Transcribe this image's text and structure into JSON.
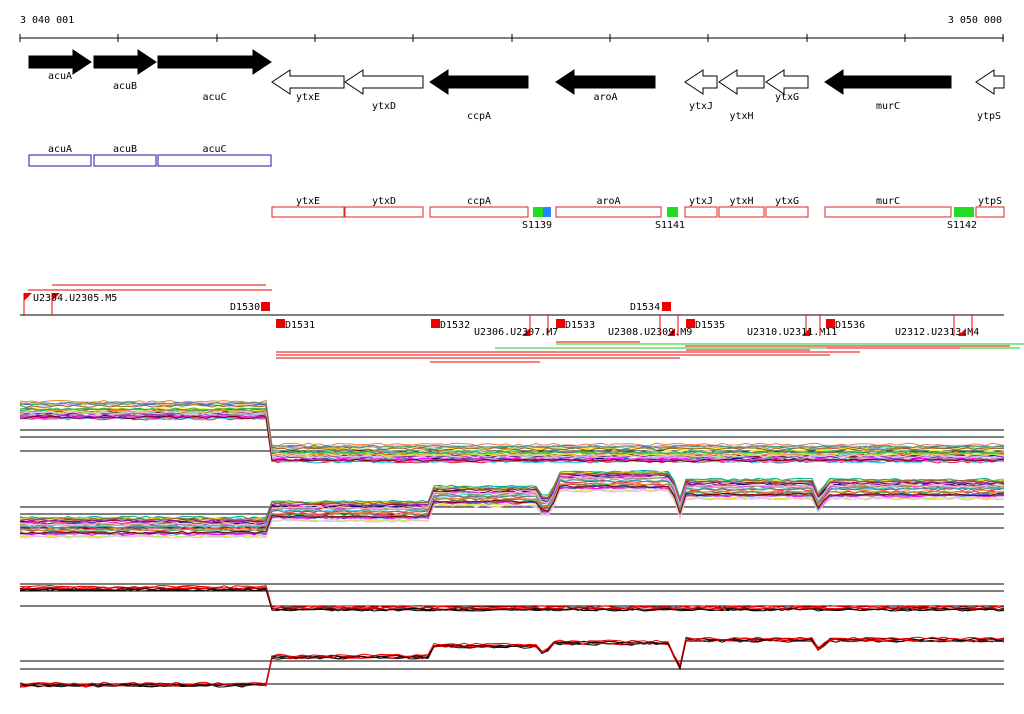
{
  "coords": {
    "start": "3 040 001",
    "end": "3 050 000"
  },
  "colors": {
    "gene_fill": "#000000",
    "gene_outline": "#000000",
    "cds_box": "#1a1aa6",
    "transcript_box": "#e02020",
    "signal_green": "#22dd22",
    "signal_blue": "#2288ff",
    "marker_red": "#ee0000",
    "line_red": "#ee0000",
    "line_green": "#22cc22",
    "profile_black": "#000000"
  },
  "genes": [
    {
      "name": "acuA",
      "strand": "+"
    },
    {
      "name": "acuB",
      "strand": "+"
    },
    {
      "name": "acuC",
      "strand": "+"
    },
    {
      "name": "ytxE",
      "strand": "-"
    },
    {
      "name": "ytxD",
      "strand": "-"
    },
    {
      "name": "ccpA",
      "strand": "-"
    },
    {
      "name": "aroA",
      "strand": "-"
    },
    {
      "name": "ytxJ",
      "strand": "-"
    },
    {
      "name": "ytxH",
      "strand": "-"
    },
    {
      "name": "ytxG",
      "strand": "-"
    },
    {
      "name": "murC",
      "strand": "-"
    },
    {
      "name": "ytpS",
      "strand": "-"
    }
  ],
  "cds_plus": [
    "acuA",
    "acuB",
    "acuC"
  ],
  "transcripts": [
    "ytxE",
    "ytxD",
    "ccpA",
    "aroA",
    "ytxJ",
    "ytxH",
    "ytxG",
    "murC",
    "ytpS"
  ],
  "signals": [
    "S1139",
    "S1141",
    "S1142"
  ],
  "upper_markers": [
    "D1530",
    "D1534"
  ],
  "lower_markers": [
    "D1531",
    "D1532",
    "D1533",
    "D1535",
    "D1536"
  ],
  "u_labels": [
    "U2304.U2305.M5",
    "U2306.U2307.M7",
    "U2308.U2309.M9",
    "U2310.U2311.M11",
    "U2312.U2313.M4"
  ],
  "profile_panels": 4
}
